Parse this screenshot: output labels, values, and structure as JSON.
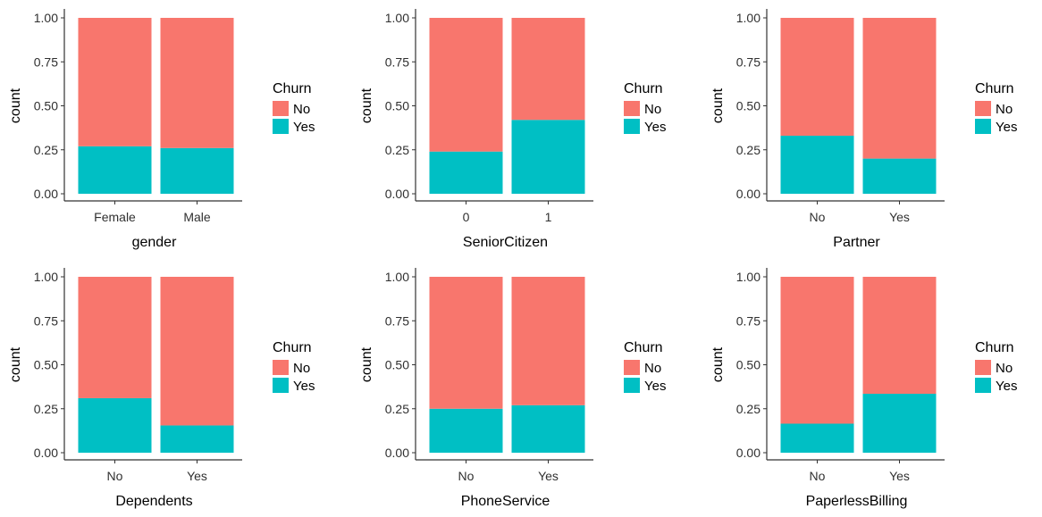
{
  "chart_data": [
    {
      "type": "bar",
      "stacked": "fill",
      "xlabel": "gender",
      "ylabel": "count",
      "categories": [
        "Female",
        "Male"
      ],
      "ylim": [
        0,
        1
      ],
      "yticks": [
        "0.00",
        "0.25",
        "0.50",
        "0.75",
        "1.00"
      ],
      "legend": {
        "title": "Churn",
        "entries": [
          "No",
          "Yes"
        ],
        "position": "right"
      },
      "series": [
        {
          "name": "No",
          "values": [
            0.73,
            0.74
          ]
        },
        {
          "name": "Yes",
          "values": [
            0.27,
            0.26
          ]
        }
      ]
    },
    {
      "type": "bar",
      "stacked": "fill",
      "xlabel": "SeniorCitizen",
      "ylabel": "count",
      "categories": [
        "0",
        "1"
      ],
      "ylim": [
        0,
        1
      ],
      "yticks": [
        "0.00",
        "0.25",
        "0.50",
        "0.75",
        "1.00"
      ],
      "legend": {
        "title": "Churn",
        "entries": [
          "No",
          "Yes"
        ],
        "position": "right"
      },
      "series": [
        {
          "name": "No",
          "values": [
            0.76,
            0.58
          ]
        },
        {
          "name": "Yes",
          "values": [
            0.24,
            0.42
          ]
        }
      ]
    },
    {
      "type": "bar",
      "stacked": "fill",
      "xlabel": "Partner",
      "ylabel": "count",
      "categories": [
        "No",
        "Yes"
      ],
      "ylim": [
        0,
        1
      ],
      "yticks": [
        "0.00",
        "0.25",
        "0.50",
        "0.75",
        "1.00"
      ],
      "legend": {
        "title": "Churn",
        "entries": [
          "No",
          "Yes"
        ],
        "position": "right"
      },
      "series": [
        {
          "name": "No",
          "values": [
            0.67,
            0.8
          ]
        },
        {
          "name": "Yes",
          "values": [
            0.33,
            0.2
          ]
        }
      ]
    },
    {
      "type": "bar",
      "stacked": "fill",
      "xlabel": "Dependents",
      "ylabel": "count",
      "categories": [
        "No",
        "Yes"
      ],
      "ylim": [
        0,
        1
      ],
      "yticks": [
        "0.00",
        "0.25",
        "0.50",
        "0.75",
        "1.00"
      ],
      "legend": {
        "title": "Churn",
        "entries": [
          "No",
          "Yes"
        ],
        "position": "right"
      },
      "series": [
        {
          "name": "No",
          "values": [
            0.69,
            0.845
          ]
        },
        {
          "name": "Yes",
          "values": [
            0.31,
            0.155
          ]
        }
      ]
    },
    {
      "type": "bar",
      "stacked": "fill",
      "xlabel": "PhoneService",
      "ylabel": "count",
      "categories": [
        "No",
        "Yes"
      ],
      "ylim": [
        0,
        1
      ],
      "yticks": [
        "0.00",
        "0.25",
        "0.50",
        "0.75",
        "1.00"
      ],
      "legend": {
        "title": "Churn",
        "entries": [
          "No",
          "Yes"
        ],
        "position": "right"
      },
      "series": [
        {
          "name": "No",
          "values": [
            0.75,
            0.73
          ]
        },
        {
          "name": "Yes",
          "values": [
            0.25,
            0.27
          ]
        }
      ]
    },
    {
      "type": "bar",
      "stacked": "fill",
      "xlabel": "PaperlessBilling",
      "ylabel": "count",
      "categories": [
        "No",
        "Yes"
      ],
      "ylim": [
        0,
        1
      ],
      "yticks": [
        "0.00",
        "0.25",
        "0.50",
        "0.75",
        "1.00"
      ],
      "legend": {
        "title": "Churn",
        "entries": [
          "No",
          "Yes"
        ],
        "position": "right"
      },
      "series": [
        {
          "name": "No",
          "values": [
            0.835,
            0.665
          ]
        },
        {
          "name": "Yes",
          "values": [
            0.165,
            0.335
          ]
        }
      ]
    }
  ],
  "colors": {
    "No": "#F8766D",
    "Yes": "#00BFC4",
    "axis": "#333333"
  }
}
